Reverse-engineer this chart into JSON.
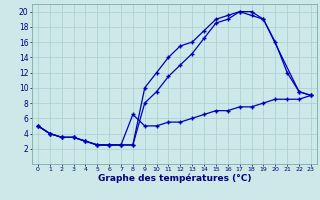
{
  "xlabel": "Graphe des températures (°C)",
  "bg_color": "#cde8e8",
  "grid_color": "#aacece",
  "line_color": "#0000bb",
  "xlim": [
    -0.5,
    23.5
  ],
  "ylim": [
    0,
    21
  ],
  "xticks": [
    0,
    1,
    2,
    3,
    4,
    5,
    6,
    7,
    8,
    9,
    10,
    11,
    12,
    13,
    14,
    15,
    16,
    17,
    18,
    19,
    20,
    21,
    22,
    23
  ],
  "yticks": [
    2,
    4,
    6,
    8,
    10,
    12,
    14,
    16,
    18,
    20
  ],
  "line1_x": [
    0,
    1,
    2,
    3,
    4,
    5,
    6,
    7,
    8,
    9,
    10,
    11,
    12,
    13,
    14,
    15,
    16,
    17,
    18,
    19,
    22,
    23
  ],
  "line1_y": [
    5.0,
    4.0,
    3.5,
    3.5,
    3.0,
    2.5,
    2.5,
    2.5,
    2.5,
    10.0,
    12.0,
    14.0,
    15.5,
    16.0,
    17.5,
    19.0,
    19.5,
    20.0,
    20.0,
    19.0,
    9.5,
    9.0
  ],
  "line2_x": [
    0,
    1,
    2,
    3,
    4,
    5,
    6,
    7,
    8,
    9,
    10,
    11,
    12,
    13,
    14,
    15,
    16,
    17,
    18,
    19,
    20,
    21,
    22,
    23
  ],
  "line2_y": [
    5.0,
    4.0,
    3.5,
    3.5,
    3.0,
    2.5,
    2.5,
    2.5,
    2.5,
    8.0,
    9.5,
    11.5,
    13.0,
    14.5,
    16.5,
    18.5,
    19.0,
    20.0,
    19.5,
    19.0,
    16.0,
    12.0,
    9.5,
    9.0
  ],
  "line3_x": [
    0,
    1,
    2,
    3,
    4,
    5,
    6,
    7,
    8,
    9,
    10,
    11,
    12,
    13,
    14,
    15,
    16,
    17,
    18,
    19,
    20,
    21,
    22,
    23
  ],
  "line3_y": [
    5.0,
    4.0,
    3.5,
    3.5,
    3.0,
    2.5,
    2.5,
    2.5,
    6.5,
    5.0,
    5.0,
    5.5,
    5.5,
    6.0,
    6.5,
    7.0,
    7.0,
    7.5,
    7.5,
    8.0,
    8.5,
    8.5,
    8.5,
    9.0
  ]
}
